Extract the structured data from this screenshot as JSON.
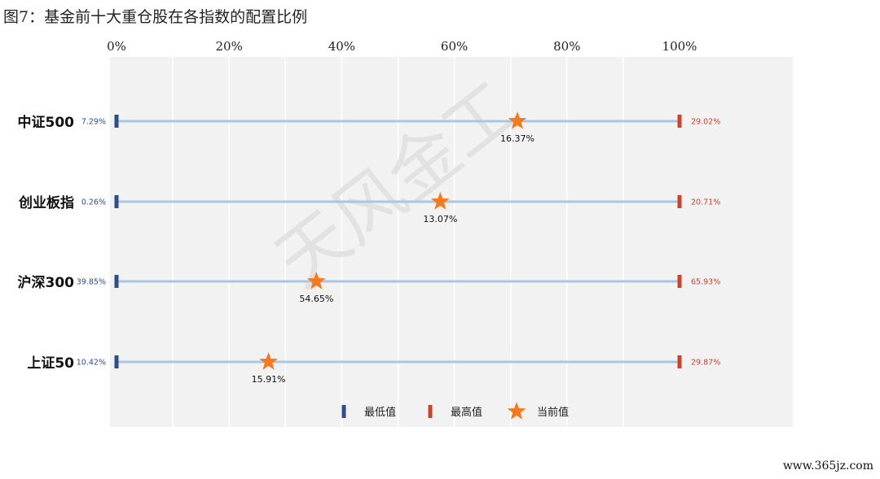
{
  "figure_title": "图7：基金前十大重仓股在各指数的配置比例",
  "watermark": "天风金工",
  "footer_url": "www.365jz.com",
  "colors": {
    "low": "#2f4d8a",
    "high": "#c9442a",
    "current": "#f57a1f",
    "range_line": "#a9c6e6",
    "plot_bg": "#f2f2f2",
    "grid": "#ffffff"
  },
  "chart_data": {
    "type": "range-dot",
    "x_ticks": [
      "0%",
      "20%",
      "40%",
      "60%",
      "80%",
      "100%"
    ],
    "xlim": [
      0,
      100
    ],
    "grid": true,
    "legend_position": "bottom",
    "legend": [
      {
        "key": "low",
        "label": "最低值"
      },
      {
        "key": "high",
        "label": "最高值"
      },
      {
        "key": "current",
        "label": "当前值"
      }
    ],
    "rows": [
      {
        "category": "中证500",
        "low_label": "7.29%",
        "high_label": "29.02%",
        "current_label": "16.37%",
        "current_pos_pct": 71.2
      },
      {
        "category": "创业板指",
        "low_label": "0.26%",
        "high_label": "20.71%",
        "current_label": "13.07%",
        "current_pos_pct": 57.5
      },
      {
        "category": "沪深300",
        "low_label": "39.85%",
        "high_label": "65.93%",
        "current_label": "54.65%",
        "current_pos_pct": 35.5
      },
      {
        "category": "上证50",
        "low_label": "10.42%",
        "high_label": "29.87%",
        "current_label": "15.91%",
        "current_pos_pct": 27.0
      }
    ]
  }
}
